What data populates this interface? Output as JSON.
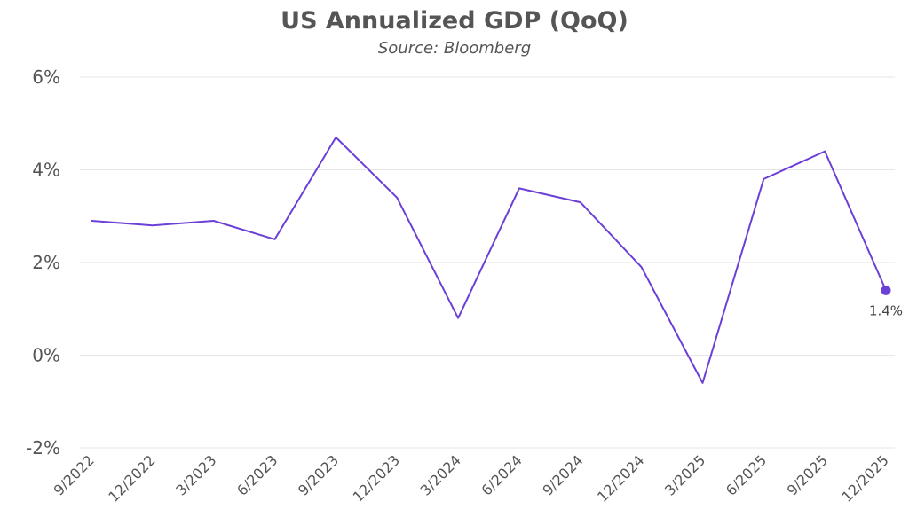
{
  "chart_data": {
    "type": "line",
    "title": "US Annualized GDP (QoQ)",
    "subtitle": "Source: Bloomberg",
    "xlabel": "",
    "ylabel": "",
    "categories": [
      "9/2022",
      "12/2022",
      "3/2023",
      "6/2023",
      "9/2023",
      "12/2023",
      "3/2024",
      "6/2024",
      "9/2024",
      "12/2024",
      "3/2025",
      "6/2025",
      "9/2025",
      "12/2025"
    ],
    "series": [
      {
        "name": "US Annualized GDP (QoQ)",
        "values": [
          2.9,
          2.8,
          2.9,
          2.5,
          4.7,
          3.4,
          0.8,
          3.6,
          3.3,
          1.9,
          -0.6,
          3.8,
          4.4,
          1.4
        ]
      }
    ],
    "ylim": [
      -2,
      6
    ],
    "yticks": [
      -2,
      0,
      2,
      4,
      6
    ],
    "ytick_labels": [
      "-2%",
      "0%",
      "2%",
      "4%",
      "6%"
    ],
    "grid": true,
    "last_point_label": "1.4%",
    "colors": {
      "line": "#6c3fd6",
      "grid": "#e6e6e6",
      "text": "#555555"
    }
  }
}
